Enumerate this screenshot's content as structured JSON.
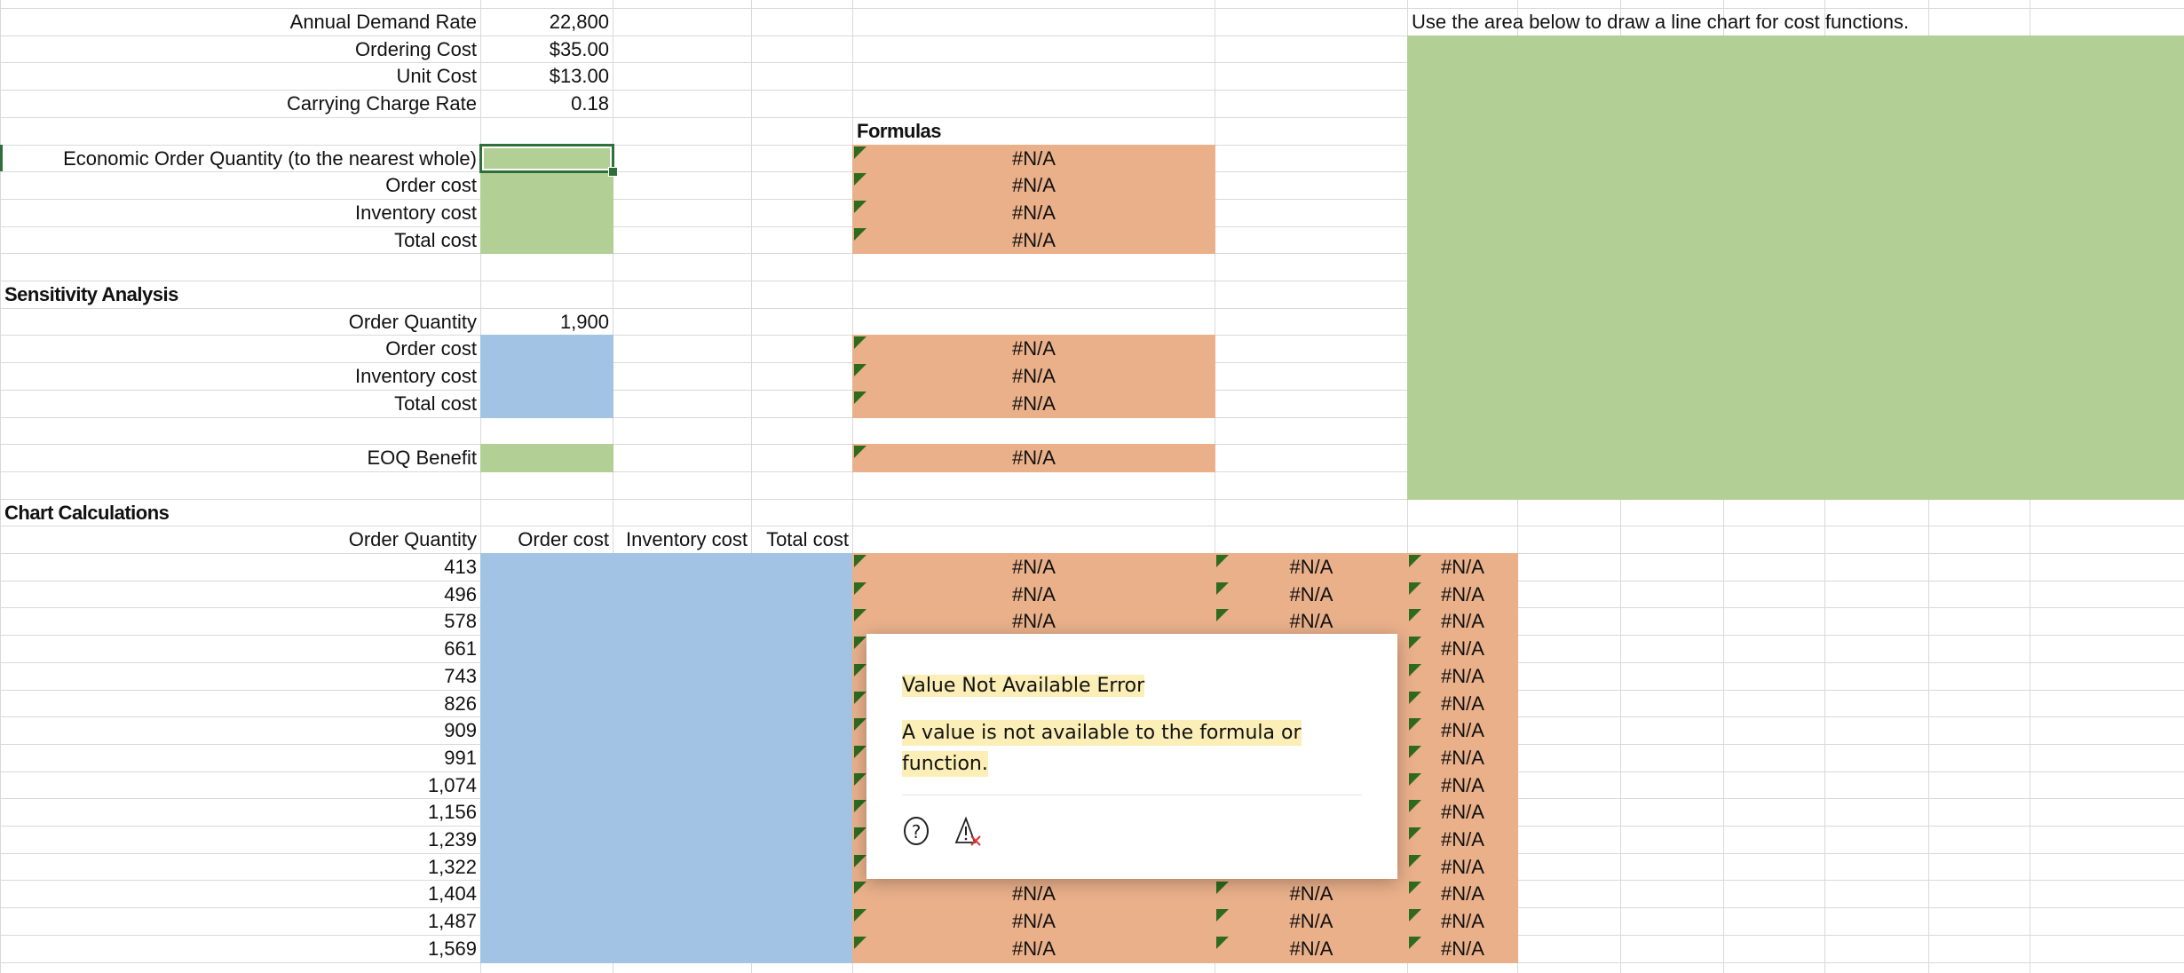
{
  "inputs": [
    {
      "label": "Annual Demand Rate",
      "value": "22,800"
    },
    {
      "label": "Ordering Cost",
      "value": "$35.00"
    },
    {
      "label": "Unit Cost",
      "value": "$13.00"
    },
    {
      "label": "Carrying Charge Rate",
      "value": "0.18"
    }
  ],
  "formulas_label": "Formulas",
  "chart_instruction": "Use the area below to draw a line chart for cost functions.",
  "eoq": {
    "labels": [
      "Economic Order Quantity (to the nearest whole)",
      "Order cost",
      "Inventory cost",
      "Total cost"
    ],
    "formula_results": [
      "#N/A",
      "#N/A",
      "#N/A",
      "#N/A"
    ]
  },
  "sensitivity": {
    "title": "Sensitivity Analysis",
    "order_quantity_label": "Order Quantity",
    "order_quantity_value": "1,900",
    "labels": [
      "Order cost",
      "Inventory cost",
      "Total cost"
    ],
    "formula_results": [
      "#N/A",
      "#N/A",
      "#N/A"
    ],
    "eoq_benefit_label": "EOQ Benefit",
    "eoq_benefit_result": "#N/A"
  },
  "chart_calc": {
    "title": "Chart Calculations",
    "headers": [
      "Order Quantity",
      "Order cost",
      "Inventory cost",
      "Total cost"
    ],
    "quantities": [
      "413",
      "496",
      "578",
      "661",
      "743",
      "826",
      "909",
      "991",
      "1,074",
      "1,156",
      "1,239",
      "1,322",
      "1,404",
      "1,487",
      "1,569"
    ],
    "results": [
      [
        "#N/A",
        "#N/A",
        "#N/A"
      ],
      [
        "#N/A",
        "#N/A",
        "#N/A"
      ],
      [
        "#N/A",
        "#N/A",
        "#N/A"
      ],
      [
        "",
        "",
        "#N/A"
      ],
      [
        "",
        "",
        "#N/A"
      ],
      [
        "",
        "",
        "#N/A"
      ],
      [
        "",
        "",
        "#N/A"
      ],
      [
        "",
        "",
        "#N/A"
      ],
      [
        "",
        "",
        "#N/A"
      ],
      [
        "",
        "",
        "#N/A"
      ],
      [
        "",
        "",
        "#N/A"
      ],
      [
        "",
        "",
        "#N/A"
      ],
      [
        "#N/A",
        "#N/A",
        "#N/A"
      ],
      [
        "#N/A",
        "#N/A",
        "#N/A"
      ],
      [
        "#N/A",
        "#N/A",
        "#N/A"
      ]
    ]
  },
  "error_popup": {
    "title": "Value Not Available Error",
    "description": "A value is not available to the formula or function.",
    "help_icon": "question-circle-icon",
    "ignore_icon": "warning-dismiss-icon"
  },
  "colors": {
    "input_green": "#b2cf95",
    "output_blue": "#a2c3e4",
    "formula_orange": "#e9b08a",
    "error_triangle": "#2e6b1f",
    "highlight": "#fbeeb6"
  }
}
